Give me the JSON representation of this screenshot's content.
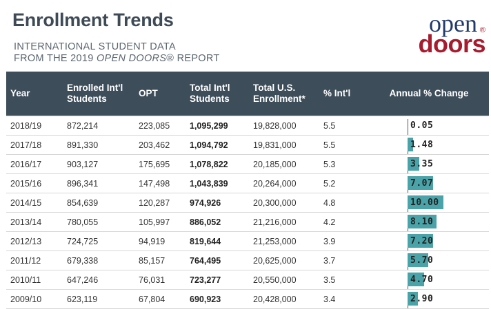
{
  "header": {
    "title": "Enrollment Trends",
    "subtitle_line1": "INTERNATIONAL STUDENT DATA",
    "subtitle_line2_pre": "FROM THE 2019 ",
    "subtitle_line2_em": "OPEN DOORS",
    "subtitle_line2_post": "® REPORT"
  },
  "logo": {
    "top": "open",
    "bottom": "doors",
    "mark": "®"
  },
  "colors": {
    "header_bg": "#3e4d5a",
    "bar": "#4aa3a8",
    "logo_blue": "#223a6a",
    "logo_red": "#a61c2e"
  },
  "chart_data": {
    "type": "table",
    "columns": [
      "Year",
      "Enrolled Int'l Students",
      "OPT",
      "Total Int'l Students",
      "Total U.S. Enrollment*",
      "% Int'l",
      "Annual % Change"
    ],
    "rows": [
      {
        "year": "2018/19",
        "enrolled": "872,214",
        "opt": "223,085",
        "total_intl": "1,095,299",
        "total_us": "19,828,000",
        "pct_intl": "5.5",
        "annual_change": "0.05"
      },
      {
        "year": "2017/18",
        "enrolled": "891,330",
        "opt": "203,462",
        "total_intl": "1,094,792",
        "total_us": "19,831,000",
        "pct_intl": "5.5",
        "annual_change": "1.48"
      },
      {
        "year": "2016/17",
        "enrolled": "903,127",
        "opt": "175,695",
        "total_intl": "1,078,822",
        "total_us": "20,185,000",
        "pct_intl": "5.3",
        "annual_change": "3.35"
      },
      {
        "year": "2015/16",
        "enrolled": "896,341",
        "opt": "147,498",
        "total_intl": "1,043,839",
        "total_us": "20,264,000",
        "pct_intl": "5.2",
        "annual_change": "7.07"
      },
      {
        "year": "2014/15",
        "enrolled": "854,639",
        "opt": "120,287",
        "total_intl": "974,926",
        "total_us": "20,300,000",
        "pct_intl": "4.8",
        "annual_change": "10.00"
      },
      {
        "year": "2013/14",
        "enrolled": "780,055",
        "opt": "105,997",
        "total_intl": "886,052",
        "total_us": "21,216,000",
        "pct_intl": "4.2",
        "annual_change": "8.10"
      },
      {
        "year": "2012/13",
        "enrolled": "724,725",
        "opt": "94,919",
        "total_intl": "819,644",
        "total_us": "21,253,000",
        "pct_intl": "3.9",
        "annual_change": "7.20"
      },
      {
        "year": "2011/12",
        "enrolled": "679,338",
        "opt": "85,157",
        "total_intl": "764,495",
        "total_us": "20,625,000",
        "pct_intl": "3.7",
        "annual_change": "5.70"
      },
      {
        "year": "2010/11",
        "enrolled": "647,246",
        "opt": "76,031",
        "total_intl": "723,277",
        "total_us": "20,550,000",
        "pct_intl": "3.5",
        "annual_change": "4.70"
      },
      {
        "year": "2009/10",
        "enrolled": "623,119",
        "opt": "67,804",
        "total_intl": "690,923",
        "total_us": "20,428,000",
        "pct_intl": "3.4",
        "annual_change": "2.90"
      }
    ],
    "bar_scale_max": 10
  }
}
